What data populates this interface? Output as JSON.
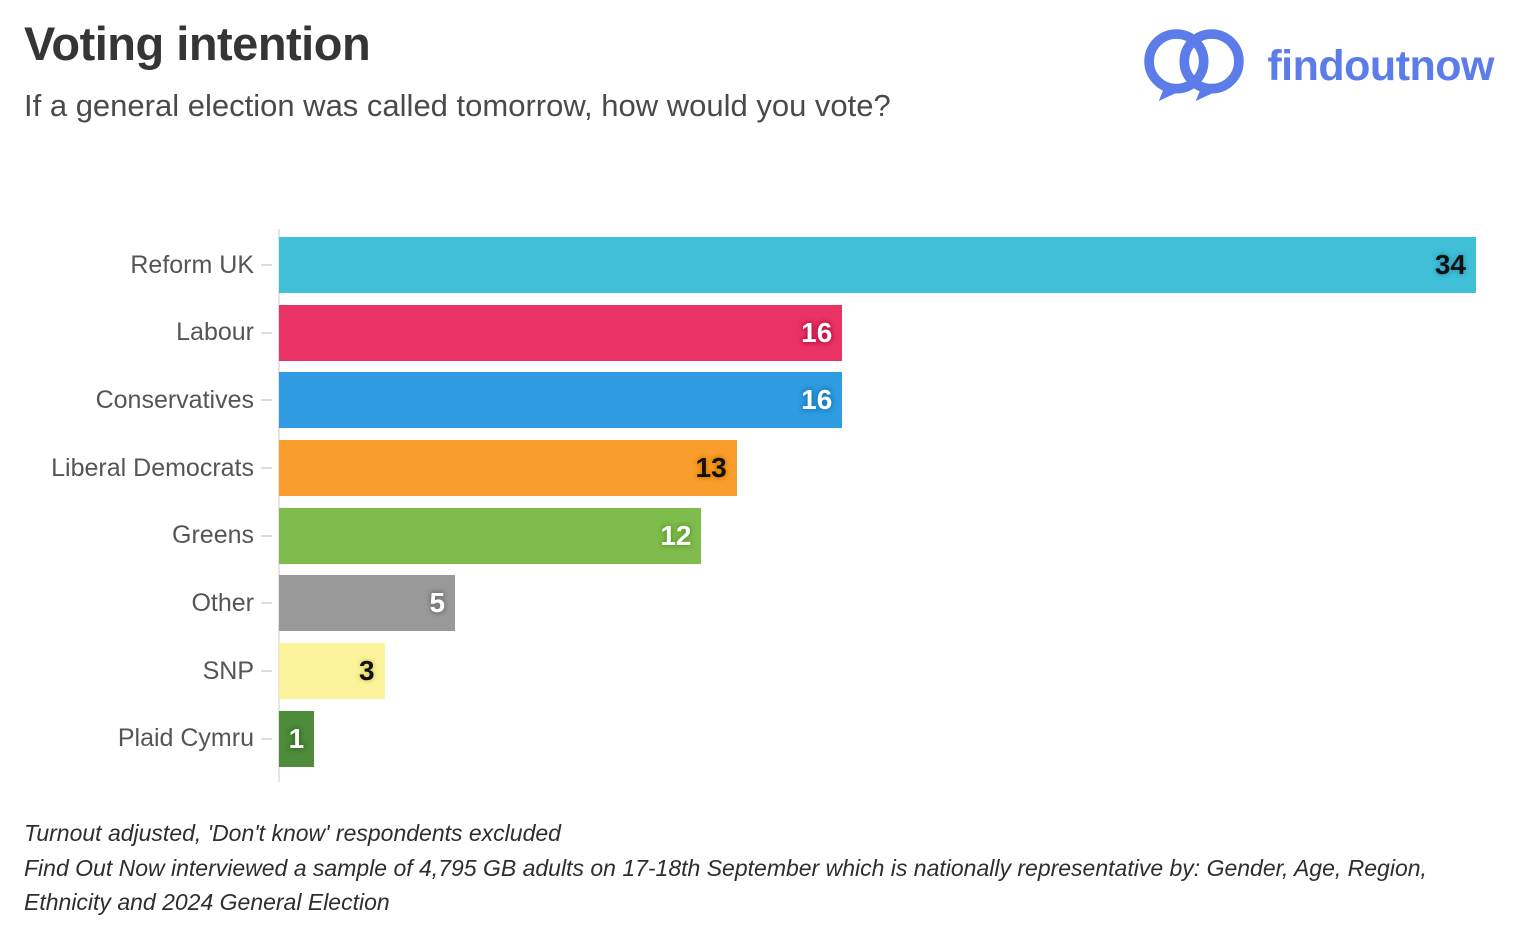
{
  "header": {
    "title": "Voting intention",
    "subtitle": "If a general election was called tomorrow, how would you vote?"
  },
  "logo": {
    "text": "findoutnow",
    "color": "#5b7ce9",
    "icon": "two-overlapping-speech-bubbles"
  },
  "footnotes": {
    "line1": "Turnout adjusted, 'Don't know' respondents excluded",
    "line2": "Find Out Now interviewed a sample of 4,795 GB adults on 17-18th September which is nationally representative by: Gender, Age, Region, Ethnicity and 2024 General Election"
  },
  "chart_data": {
    "type": "bar",
    "orientation": "horizontal",
    "title": "Voting intention",
    "xlabel": "",
    "ylabel": "",
    "xlim": [
      0,
      34
    ],
    "grid": false,
    "legend": "none",
    "categories": [
      "Reform UK",
      "Labour",
      "Conservatives",
      "Liberal Democrats",
      "Greens",
      "Other",
      "SNP",
      "Plaid Cymru"
    ],
    "values": [
      34,
      16,
      16,
      13,
      12,
      5,
      3,
      1
    ],
    "bars": [
      {
        "label": "Reform UK",
        "value": 34,
        "color": "#41bfd9",
        "value_color": "#101010",
        "halo": "#2fa8c4"
      },
      {
        "label": "Labour",
        "value": 16,
        "color": "#e93364",
        "value_color": "#ffffff",
        "halo": "#c21747"
      },
      {
        "label": "Conservatives",
        "value": 16,
        "color": "#2f9be0",
        "value_color": "#ffffff",
        "halo": "#1b7fc2"
      },
      {
        "label": "Liberal Democrats",
        "value": 13,
        "color": "#f99e2c",
        "value_color": "#101010",
        "halo": "#e08300"
      },
      {
        "label": "Greens",
        "value": 12,
        "color": "#7fbc4d",
        "value_color": "#ffffff",
        "halo": "#63a233"
      },
      {
        "label": "Other",
        "value": 5,
        "color": "#999999",
        "value_color": "#ffffff",
        "halo": "#767676"
      },
      {
        "label": "SNP",
        "value": 3,
        "color": "#fbf39b",
        "value_color": "#101010",
        "halo": "#e5d96e"
      },
      {
        "label": "Plaid Cymru",
        "value": 1,
        "color": "#4e8b3b",
        "value_color": "#ffffff",
        "halo": "#39722a"
      }
    ]
  }
}
